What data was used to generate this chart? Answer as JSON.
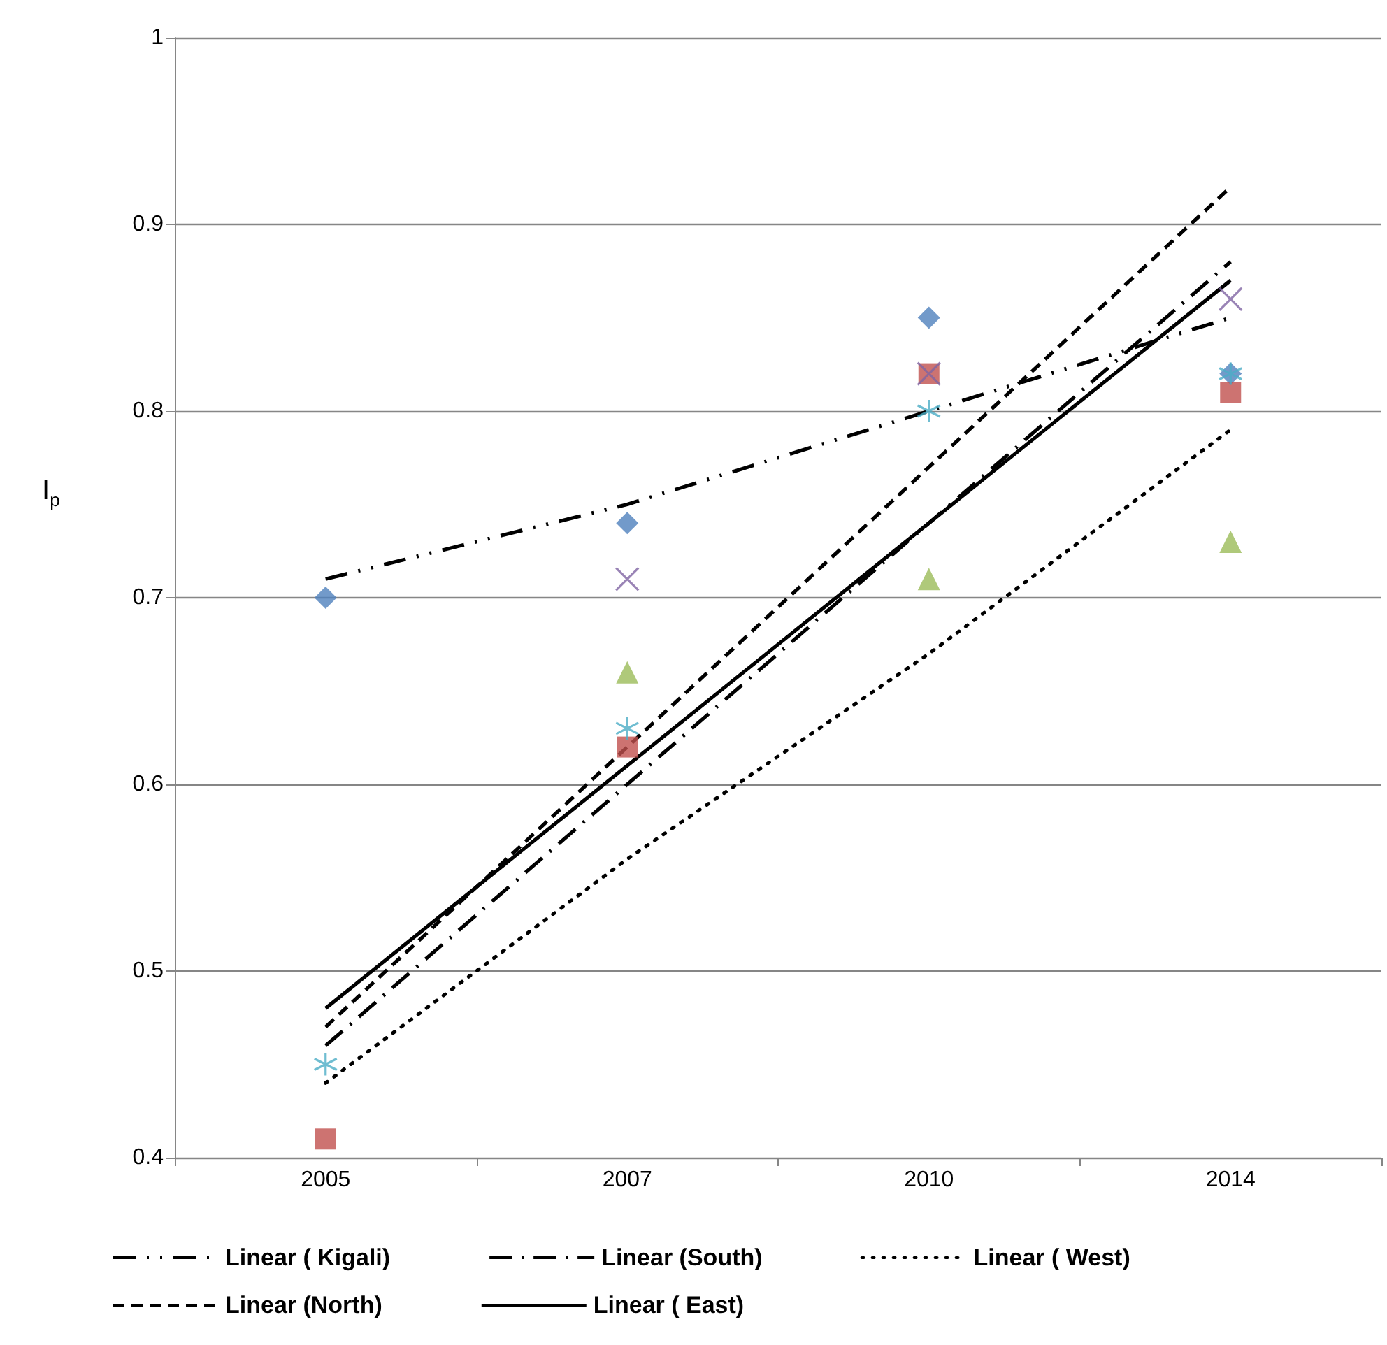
{
  "chart_data": {
    "type": "scatter",
    "ylabel": "I$_{p}$",
    "categories": [
      "2005",
      "2007",
      "2010",
      "2014"
    ],
    "ylim": [
      0.4,
      1
    ],
    "yticks": [
      0.4,
      0.5,
      0.6,
      0.7,
      0.8,
      0.9,
      1
    ],
    "grid": "y",
    "legend": "bottom",
    "series": [
      {
        "marker": "diamond",
        "color": "#4f81bd",
        "values": [
          0.7,
          0.74,
          0.85,
          0.82
        ]
      },
      {
        "marker": "square",
        "color": "#c0504d",
        "values": [
          0.41,
          0.62,
          0.82,
          0.81
        ]
      },
      {
        "marker": "triangle",
        "color": "#9bbb59",
        "values": [
          null,
          0.66,
          0.71,
          0.73
        ]
      },
      {
        "marker": "cross",
        "color": "#8064a2",
        "values": [
          null,
          0.71,
          0.82,
          0.86
        ]
      },
      {
        "marker": "star",
        "color": "#4bacc6",
        "values": [
          0.45,
          0.63,
          0.8,
          0.82
        ]
      },
      {
        "type": "line",
        "name": "Linear ( Kigali)",
        "color": "#000000",
        "line_style": "dashdotdot",
        "values": [
          0.71,
          0.75,
          0.8,
          0.85
        ]
      },
      {
        "type": "line",
        "name": "Linear (South)",
        "color": "#000000",
        "line_style": "dashdot",
        "values": [
          0.46,
          0.6,
          0.74,
          0.88
        ]
      },
      {
        "type": "line",
        "name": "Linear ( West)",
        "color": "#000000",
        "line_style": "dotted",
        "values": [
          0.44,
          0.56,
          0.67,
          0.79
        ]
      },
      {
        "type": "line",
        "name": "Linear (North)",
        "color": "#000000",
        "line_style": "dashed",
        "values": [
          0.47,
          0.62,
          0.77,
          0.92
        ]
      },
      {
        "type": "line",
        "name": "Linear ( East)",
        "color": "#000000",
        "line_style": "solid",
        "values": [
          0.48,
          0.61,
          0.74,
          0.87
        ]
      }
    ]
  }
}
